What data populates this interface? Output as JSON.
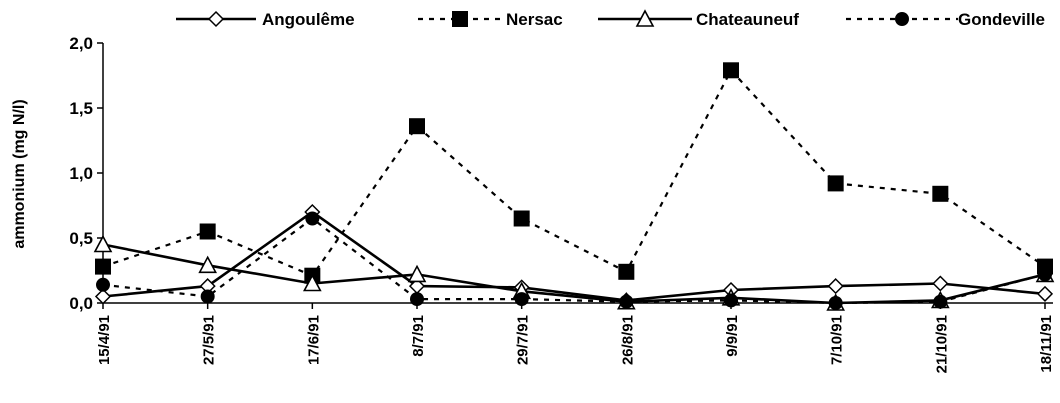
{
  "chart_data": {
    "type": "line",
    "categories": [
      "15/4/91",
      "27/5/91",
      "17/6/91",
      "8/7/91",
      "29/7/91",
      "26/8/91",
      "9/9/91",
      "7/10/91",
      "21/10/91",
      "18/11/91"
    ],
    "ylabel": "ammonium (mg N/l)",
    "ylim": [
      0,
      2.0
    ],
    "yticks": [
      "0,0",
      "0,5",
      "1,0",
      "1,5",
      "2,0"
    ],
    "grid": false,
    "legend_position": "top",
    "series": [
      {
        "name": "Angoulême",
        "values": [
          0.05,
          0.13,
          0.7,
          0.13,
          0.12,
          0.02,
          0.1,
          0.13,
          0.15,
          0.07
        ],
        "marker": "diamond-open",
        "line": "solid",
        "color": "#000000"
      },
      {
        "name": "Nersac",
        "values": [
          0.28,
          0.55,
          0.21,
          1.36,
          0.65,
          0.24,
          1.79,
          0.92,
          0.84,
          0.28
        ],
        "marker": "square-filled",
        "line": "dotted",
        "color": "#000000"
      },
      {
        "name": "Chateauneuf",
        "values": [
          0.45,
          0.29,
          0.15,
          0.22,
          0.09,
          0.01,
          0.04,
          0.0,
          0.02,
          0.22
        ],
        "marker": "triangle-open",
        "line": "solid",
        "color": "#000000"
      },
      {
        "name": "Gondeville",
        "values": [
          0.14,
          0.05,
          0.65,
          0.03,
          0.03,
          0.01,
          0.02,
          0.0,
          0.01,
          0.22
        ],
        "marker": "circle-filled",
        "line": "dotted",
        "color": "#000000"
      }
    ]
  }
}
